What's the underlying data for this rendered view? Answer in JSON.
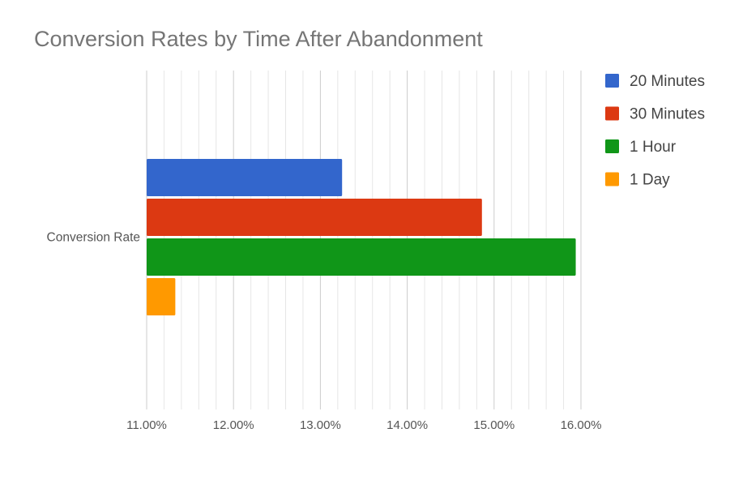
{
  "chart_data": {
    "type": "bar",
    "orientation": "horizontal",
    "title": "Conversion Rates by Time After Abandonment",
    "categories": [
      "Conversion Rate"
    ],
    "series": [
      {
        "name": "20 Minutes",
        "values": [
          13.25
        ],
        "color": "#3366cc"
      },
      {
        "name": "30 Minutes",
        "values": [
          14.86
        ],
        "color": "#dc3912"
      },
      {
        "name": "1 Hour",
        "values": [
          15.94
        ],
        "color": "#109618"
      },
      {
        "name": "1 Day",
        "values": [
          11.33
        ],
        "color": "#ff9900"
      }
    ],
    "x_ticks": [
      "11.00%",
      "12.00%",
      "13.00%",
      "14.00%",
      "15.00%",
      "16.00%"
    ],
    "xlim": [
      11,
      16
    ],
    "minor_gridlines_per_major": 5,
    "grid": true,
    "legend_position": "right",
    "xlabel": "",
    "ylabel": ""
  }
}
